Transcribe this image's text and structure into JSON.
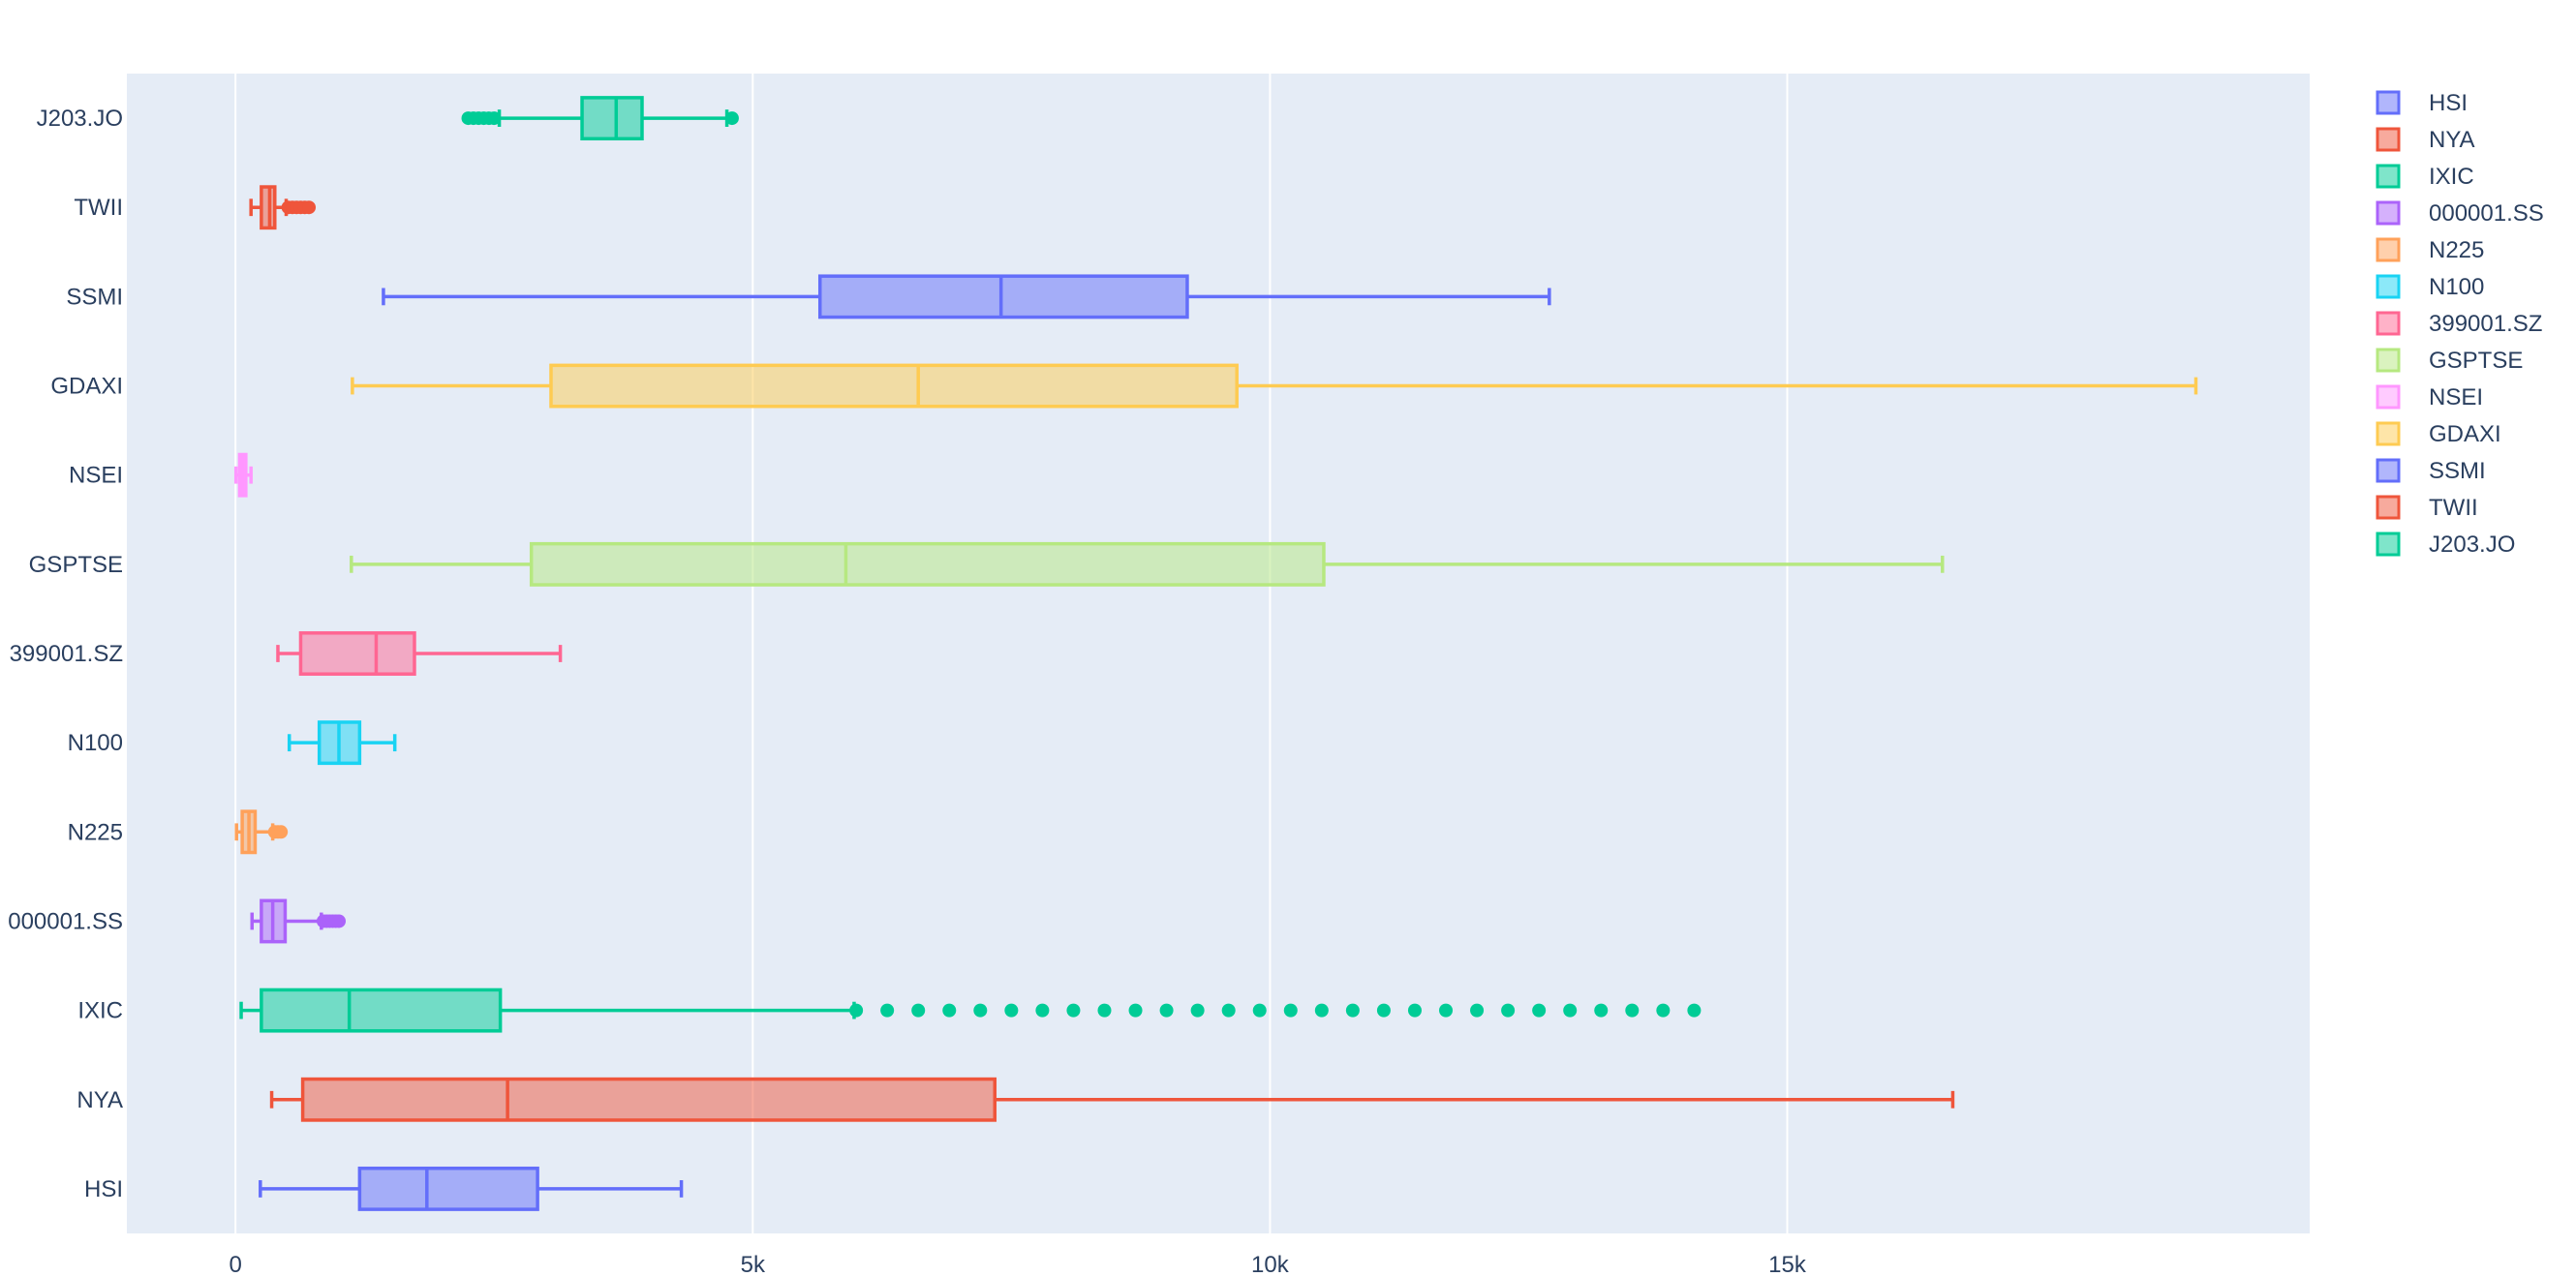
{
  "chart_data": {
    "type": "box",
    "orientation": "horizontal",
    "title": "",
    "xlabel": "",
    "ylabel": "",
    "xlim": [
      -1050,
      20050
    ],
    "x_ticks": [
      {
        "value": 0,
        "label": "0"
      },
      {
        "value": 5000,
        "label": "5k"
      },
      {
        "value": 10000,
        "label": "10k"
      },
      {
        "value": 15000,
        "label": "15k"
      }
    ],
    "grid": true,
    "legend_position": "right",
    "plot_bgcolor": "#e5ecf6",
    "series": [
      {
        "name": "HSI",
        "color": "#636efa",
        "min": 240,
        "q1": 1200,
        "median": 1850,
        "q3": 2920,
        "max": 4310,
        "outliers": []
      },
      {
        "name": "NYA",
        "color": "#ef553b",
        "min": 350,
        "q1": 650,
        "median": 2630,
        "q3": 7340,
        "max": 16600,
        "outliers": []
      },
      {
        "name": "IXIC",
        "color": "#00cc96",
        "min": 55,
        "q1": 250,
        "median": 1100,
        "q3": 2560,
        "max": 5980,
        "outliers": [
          6000,
          6300,
          6600,
          6900,
          7200,
          7500,
          7800,
          8100,
          8400,
          8700,
          9000,
          9300,
          9600,
          9900,
          10200,
          10500,
          10800,
          11100,
          11400,
          11700,
          12000,
          12300,
          12600,
          12900,
          13200,
          13500,
          13800,
          14100
        ]
      },
      {
        "name": "000001.SS",
        "color": "#ab63fa",
        "min": 160,
        "q1": 250,
        "median": 360,
        "q3": 480,
        "max": 830,
        "outliers": [
          850,
          880,
          910,
          940,
          970,
          1000
        ]
      },
      {
        "name": "N225",
        "color": "#ffa15a",
        "min": 10,
        "q1": 65,
        "median": 130,
        "q3": 190,
        "max": 360,
        "outliers": [
          380,
          410,
          440
        ]
      },
      {
        "name": "N100",
        "color": "#19d3f3",
        "min": 520,
        "q1": 810,
        "median": 1000,
        "q3": 1200,
        "max": 1540,
        "outliers": []
      },
      {
        "name": "399001.SZ",
        "color": "#ff6692",
        "min": 410,
        "q1": 630,
        "median": 1360,
        "q3": 1730,
        "max": 3140,
        "outliers": []
      },
      {
        "name": "GSPTSE",
        "color": "#b6e880",
        "min": 1120,
        "q1": 2860,
        "median": 5900,
        "q3": 10520,
        "max": 16500,
        "outliers": []
      },
      {
        "name": "NSEI",
        "color": "#ff97ff",
        "min": 5,
        "q1": 40,
        "median": 70,
        "q3": 100,
        "max": 150,
        "outliers": []
      },
      {
        "name": "GDAXI",
        "color": "#fecb52",
        "min": 1130,
        "q1": 3050,
        "median": 6600,
        "q3": 9680,
        "max": 18950,
        "outliers": []
      },
      {
        "name": "SSMI",
        "color": "#636efa",
        "min": 1430,
        "q1": 5650,
        "median": 7400,
        "q3": 9200,
        "max": 12700,
        "outliers": []
      },
      {
        "name": "TWII",
        "color": "#ef553b",
        "min": 150,
        "q1": 250,
        "median": 330,
        "q3": 380,
        "max": 490,
        "outliers": [
          510,
          550,
          590,
          630,
          670,
          710
        ]
      },
      {
        "name": "J203.JO",
        "color": "#00cc96",
        "min": 2550,
        "q1": 3350,
        "median": 3680,
        "q3": 3930,
        "max": 4750,
        "outliers": [
          2250,
          2300,
          2350,
          2400,
          2450,
          2500,
          4800
        ]
      }
    ]
  }
}
